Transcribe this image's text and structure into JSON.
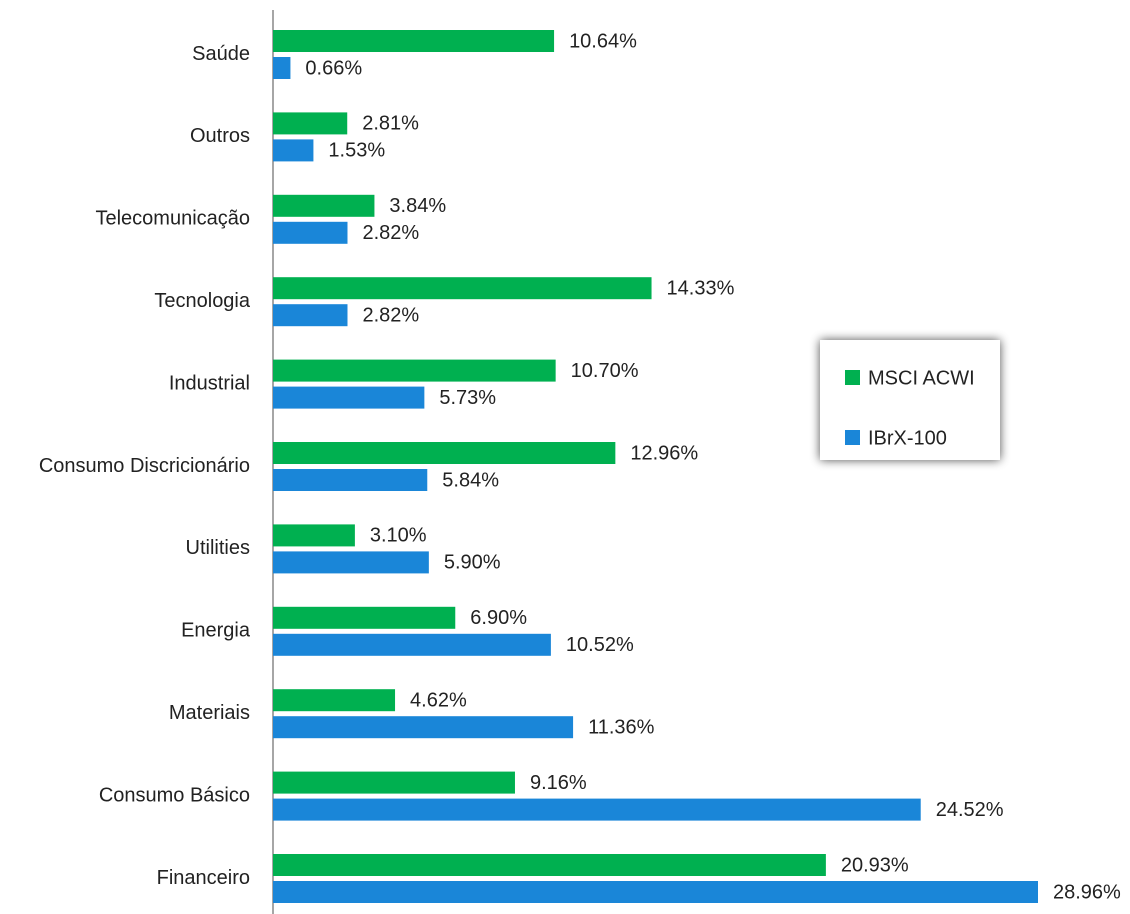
{
  "chart_data": {
    "type": "barh",
    "categories": [
      "Saúde",
      "Outros",
      "Telecomunicação",
      "Tecnologia",
      "Industrial",
      "Consumo Discricionário",
      "Utilities",
      "Energia",
      "Materiais",
      "Consumo Básico",
      "Financeiro"
    ],
    "series": [
      {
        "name": "MSCI ACWI",
        "color": "#00b050",
        "values": [
          10.64,
          2.81,
          3.84,
          14.33,
          10.7,
          12.96,
          3.1,
          6.9,
          4.62,
          9.16,
          20.93
        ],
        "value_labels": [
          "10.64%",
          "2.81%",
          "3.84%",
          "14.33%",
          "10.70%",
          "12.96%",
          "3.10%",
          "6.90%",
          "4.62%",
          "9.16%",
          "20.93%"
        ]
      },
      {
        "name": "IBrX-100",
        "color": "#1a86d8",
        "values": [
          0.66,
          1.53,
          2.82,
          2.82,
          5.73,
          5.84,
          5.9,
          10.52,
          11.36,
          24.52,
          28.96
        ],
        "value_labels": [
          "0.66%",
          "1.53%",
          "2.82%",
          "2.82%",
          "5.73%",
          "5.84%",
          "5.90%",
          "10.52%",
          "11.36%",
          "24.52%",
          "28.96%"
        ]
      }
    ],
    "legend": "right"
  }
}
